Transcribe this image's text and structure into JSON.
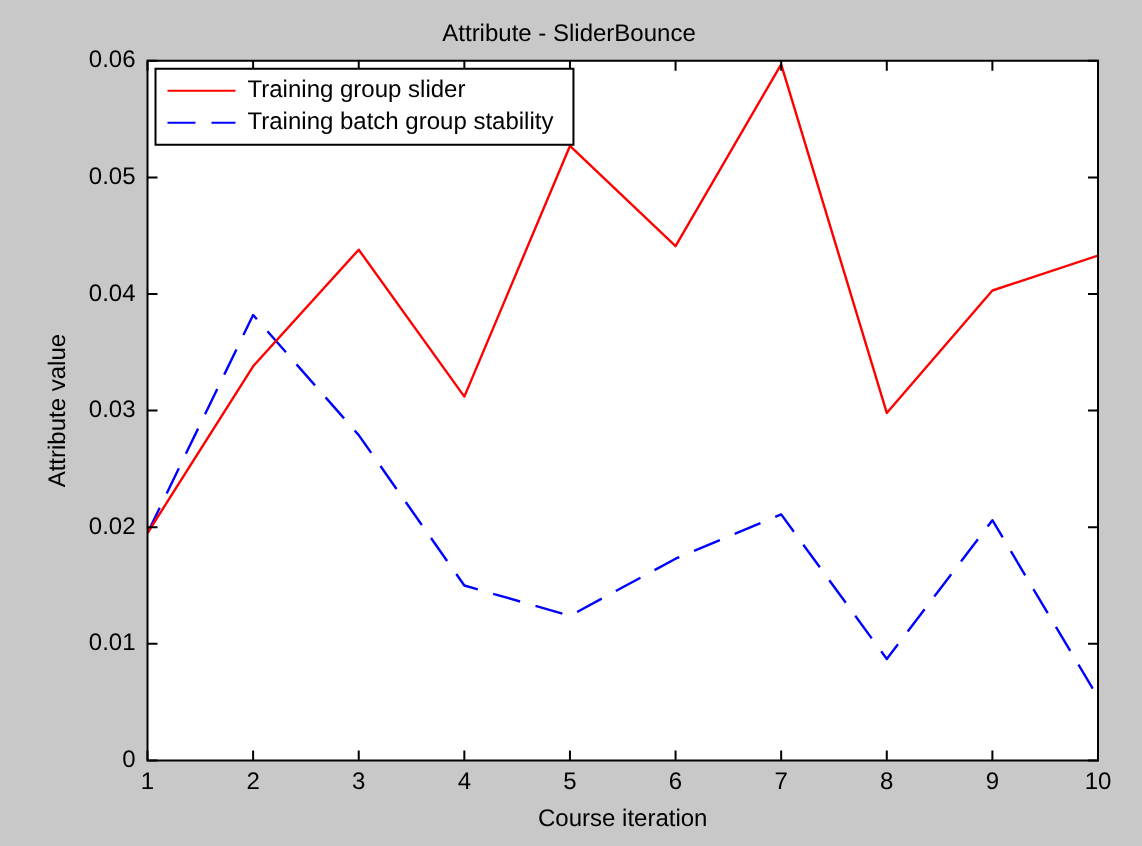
{
  "chart_data": {
    "type": "line",
    "title": "Attribute - SliderBounce",
    "xlabel": "Course iteration",
    "ylabel": "Attribute value",
    "x": [
      1,
      2,
      3,
      4,
      5,
      6,
      7,
      8,
      9,
      10
    ],
    "series": [
      {
        "name": "Training group slider",
        "color": "#ff0000",
        "line_style": "solid",
        "values": [
          0.0195,
          0.0338,
          0.0438,
          0.0312,
          0.0527,
          0.0441,
          0.0597,
          0.0298,
          0.0403,
          0.0433
        ]
      },
      {
        "name": "Training batch group stability",
        "color": "#0000ff",
        "line_style": "dashed",
        "values": [
          0.0195,
          0.0382,
          0.0279,
          0.015,
          0.0124,
          0.0173,
          0.0211,
          0.0087,
          0.0206,
          0.0054
        ]
      }
    ],
    "xlim": [
      1,
      10
    ],
    "xticks": [
      1,
      2,
      3,
      4,
      5,
      6,
      7,
      8,
      9,
      10
    ],
    "ylim": [
      0,
      0.06
    ],
    "yticks": [
      0,
      0.01,
      0.02,
      0.03,
      0.04,
      0.05,
      0.06
    ],
    "grid": false,
    "legend": "top left",
    "marker": "none"
  }
}
